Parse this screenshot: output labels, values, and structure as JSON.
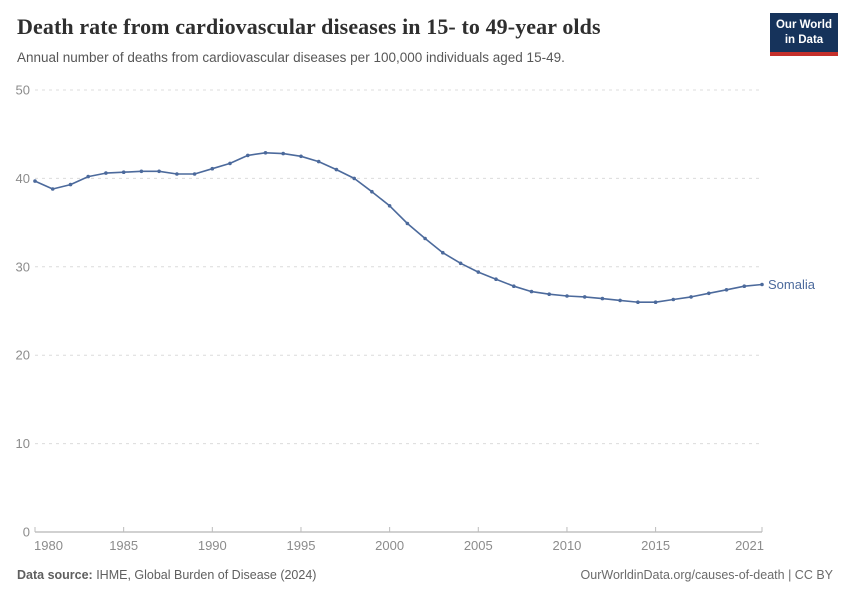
{
  "header": {
    "title": "Death rate from cardiovascular diseases in 15- to 49-year olds",
    "subtitle": "Annual number of deaths from cardiovascular diseases per 100,000 individuals aged 15-49."
  },
  "logo": {
    "line1": "Our World",
    "line2": "in Data",
    "bg_color": "#16335b",
    "stripe_color": "#c5302b"
  },
  "chart_data": {
    "type": "line",
    "title": "Death rate from cardiovascular diseases in 15- to 49-year olds",
    "subtitle": "Annual number of deaths from cardiovascular diseases per 100,000 individuals aged 15-49.",
    "xlabel": "",
    "ylabel": "",
    "x": [
      1980,
      1981,
      1982,
      1983,
      1984,
      1985,
      1986,
      1987,
      1988,
      1989,
      1990,
      1991,
      1992,
      1993,
      1994,
      1995,
      1996,
      1997,
      1998,
      1999,
      2000,
      2001,
      2002,
      2003,
      2004,
      2005,
      2006,
      2007,
      2008,
      2009,
      2010,
      2011,
      2012,
      2013,
      2014,
      2015,
      2016,
      2017,
      2018,
      2019,
      2020,
      2021
    ],
    "series": [
      {
        "name": "Somalia",
        "color": "#4c6a9c",
        "values": [
          39.7,
          38.8,
          39.3,
          40.2,
          40.6,
          40.7,
          40.8,
          40.8,
          40.5,
          40.5,
          41.1,
          41.7,
          42.6,
          42.9,
          42.8,
          42.5,
          41.9,
          41.0,
          40.0,
          38.5,
          36.9,
          34.9,
          33.2,
          31.6,
          30.4,
          29.4,
          28.6,
          27.8,
          27.2,
          26.9,
          26.7,
          26.6,
          26.4,
          26.2,
          26.0,
          26.0,
          26.3,
          26.6,
          27.0,
          27.4,
          27.8,
          28.0
        ]
      }
    ],
    "ylim": [
      0,
      50
    ],
    "yticks": [
      0,
      10,
      20,
      30,
      40,
      50
    ],
    "xticks": [
      1980,
      1985,
      1990,
      1995,
      2000,
      2005,
      2010,
      2015,
      2021
    ],
    "grid": "horizontal-dashed",
    "legend_position": "line-end-label"
  },
  "footer": {
    "source_label": "Data source:",
    "source_value": " IHME, Global Burden of Disease (2024)",
    "right_link": "OurWorldinData.org/causes-of-death",
    "right_suffix": " | CC BY"
  }
}
